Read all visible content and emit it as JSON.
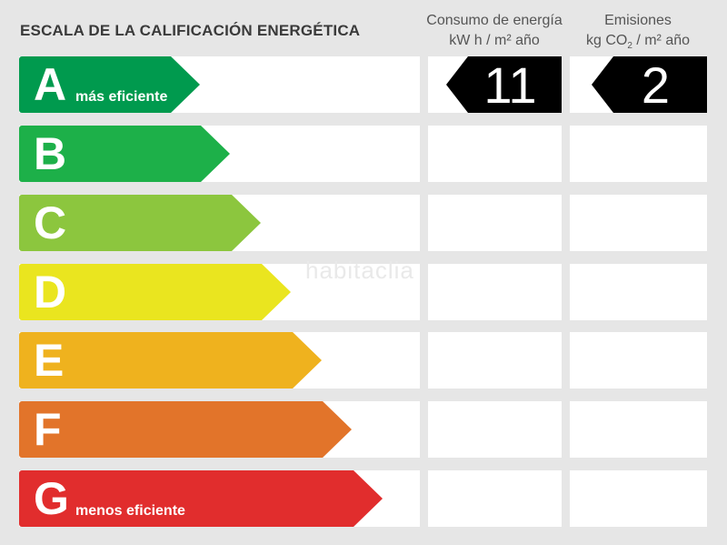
{
  "title": "ESCALA DE LA CALIFICACIÓN ENERGÉTICA",
  "energy_header": {
    "line1": "Consumo de energía",
    "line2": "kW h  / m² año"
  },
  "emissions_header": {
    "line1": "Emisiones",
    "line2_prefix": "kg CO",
    "line2_sub": "2",
    "line2_suffix": " / m² año"
  },
  "ratings": [
    {
      "letter": "A",
      "label": "más eficiente",
      "color": "#009a4e"
    },
    {
      "letter": "B",
      "label": "",
      "color": "#1db049"
    },
    {
      "letter": "C",
      "label": "",
      "color": "#8cc63e"
    },
    {
      "letter": "D",
      "label": "",
      "color": "#eae51f"
    },
    {
      "letter": "E",
      "label": "",
      "color": "#efb21e"
    },
    {
      "letter": "F",
      "label": "",
      "color": "#e2742a"
    },
    {
      "letter": "G",
      "label": "menos eficiente",
      "color": "#e12d2d"
    }
  ],
  "energy_value": "11",
  "emissions_value": "2",
  "watermark": "habitaclia"
}
